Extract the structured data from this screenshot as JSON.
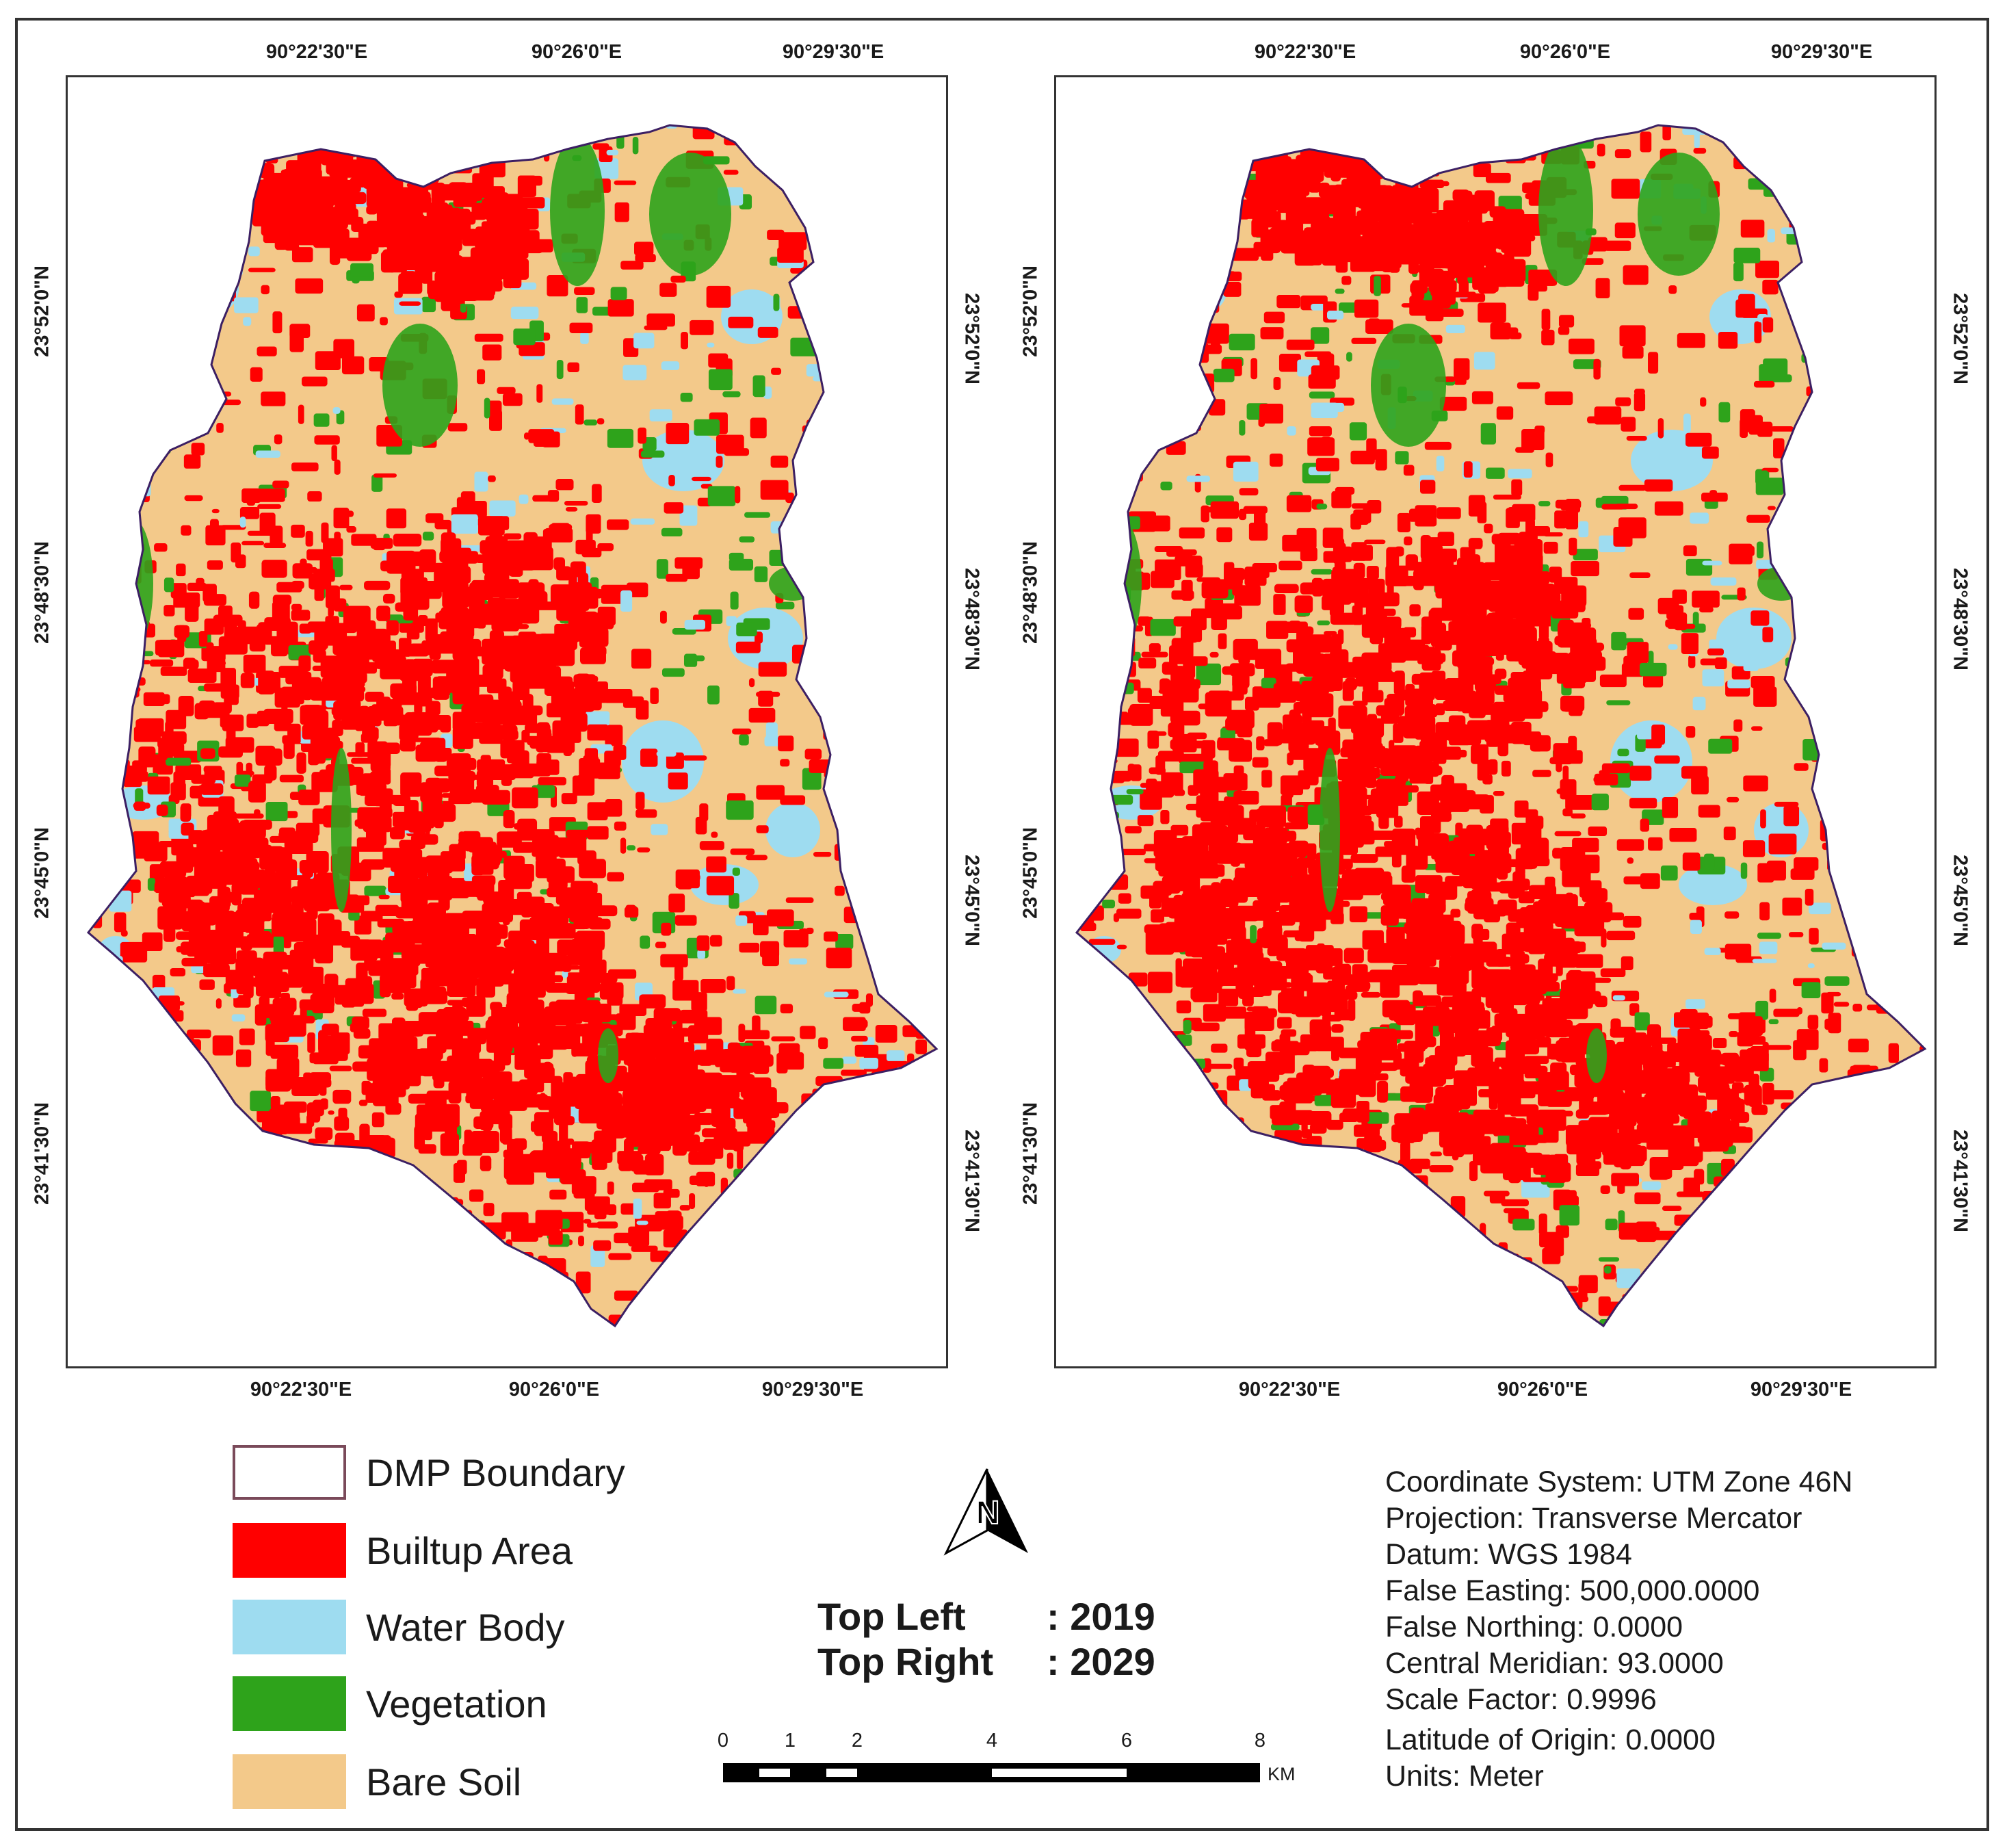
{
  "maps": [
    {
      "id": "left",
      "top_ticks": [
        "90°22'30\"E",
        "90°26'0\"E",
        "90°29'30\"E"
      ],
      "bottom_ticks": [
        "90°22'30\"E",
        "90°26'0\"E",
        "90°29'30\"E"
      ],
      "left_ticks": [
        "23°52'0\"N",
        "23°48'30\"N",
        "23°45'0\"N",
        "23°41'30\"N"
      ],
      "right_ticks": [
        "23°52'0\"N",
        "23°48'30\"N",
        "23°45'0\"N",
        "23°41'30\"N"
      ]
    },
    {
      "id": "right",
      "top_ticks": [
        "90°22'30\"E",
        "90°26'0\"E",
        "90°29'30\"E"
      ],
      "bottom_ticks": [
        "90°22'30\"E",
        "90°26'0\"E",
        "90°29'30\"E"
      ],
      "left_ticks": [
        "23°52'0\"N",
        "23°48'30\"N",
        "23°45'0\"N",
        "23°41'30\"N"
      ],
      "right_ticks": [
        "23°52'0\"N",
        "23°48'30\"N",
        "23°45'0\"N",
        "23°41'30\"N"
      ]
    }
  ],
  "legend": [
    {
      "label": "DMP Boundary",
      "color": "#ffffff",
      "border": "#7a4a5a"
    },
    {
      "label": "Builtup Area",
      "color": "#ff0000"
    },
    {
      "label": "Water Body",
      "color": "#9edcf0"
    },
    {
      "label": "Vegetation",
      "color": "#2ea31b"
    },
    {
      "label": "Bare Soil",
      "color": "#f3c98a"
    }
  ],
  "north_arrow": {
    "letter": "N",
    "icon": "north-arrow-icon"
  },
  "years": {
    "top_left_key": "Top Left",
    "top_left_value": ": 2019",
    "top_right_key": "Top Right",
    "top_right_value": ": 2029"
  },
  "scale_bar": {
    "labels": [
      "0",
      "1",
      "2",
      "4",
      "6",
      "8"
    ],
    "unit": "KM"
  },
  "info": [
    "Coordinate System: UTM Zone 46N",
    "Projection: Transverse Mercator",
    "Datum: WGS 1984",
    "False Easting: 500,000.0000",
    "False Northing: 0.0000",
    "Central Meridian: 93.0000",
    "Scale Factor: 0.9996",
    "Latitude of Origin: 0.0000",
    "Units: Meter"
  ],
  "colors": {
    "builtup": "#ff0000",
    "water": "#9edcf0",
    "vegetation": "#2ea31b",
    "baresoil": "#f3c98a",
    "boundary": "#3c1f63"
  }
}
